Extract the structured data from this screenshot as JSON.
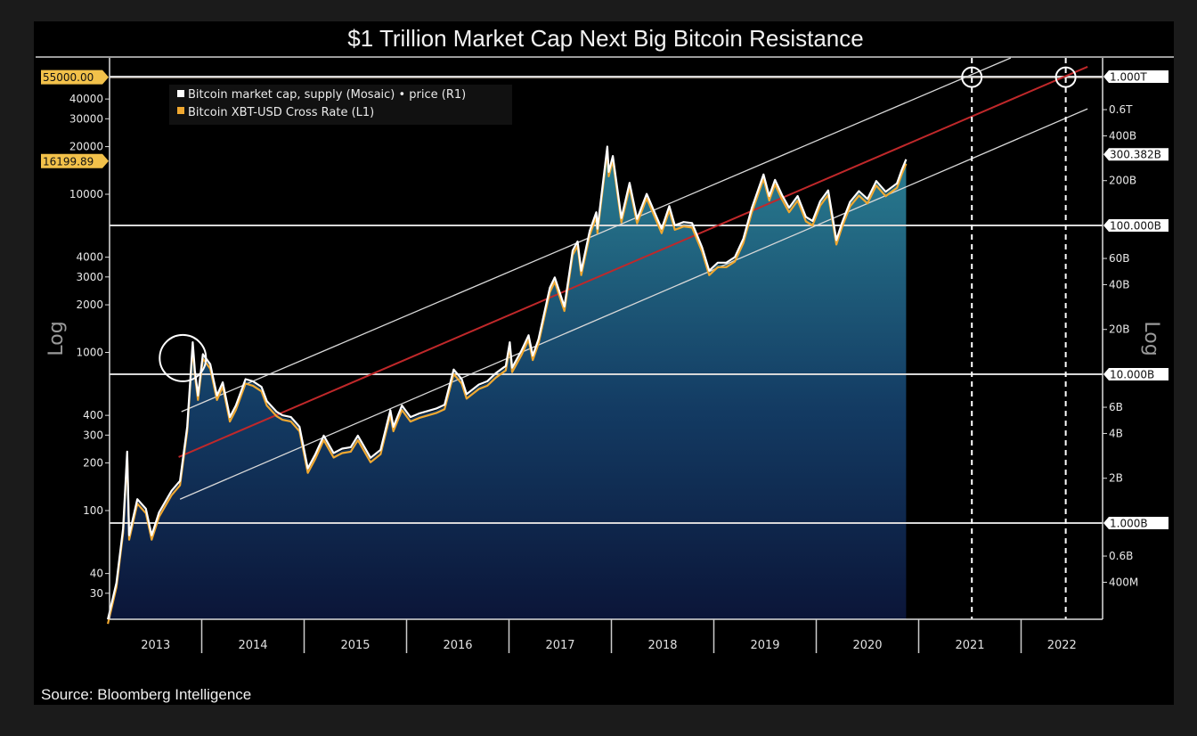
{
  "chart_data": {
    "type": "line",
    "title": "$1 Trillion Market Cap Next Big Bitcoin Resistance",
    "source": "Source: Bloomberg Intelligence",
    "x_range": [
      "2013-02-01",
      "2022-10-15"
    ],
    "x_tick_labels": [
      "2013",
      "2014",
      "2015",
      "2016",
      "2017",
      "2018",
      "2019",
      "2020",
      "2021",
      "2022"
    ],
    "left_axis": {
      "label": "Log",
      "scale": "log",
      "unit": "USD",
      "ticks": [
        {
          "v": 40000,
          "t": "40000"
        },
        {
          "v": 30000,
          "t": "30000"
        },
        {
          "v": 20000,
          "t": "20000"
        },
        {
          "v": 10000,
          "t": "10000"
        },
        {
          "v": 4000,
          "t": "4000"
        },
        {
          "v": 3000,
          "t": "3000"
        },
        {
          "v": 2000,
          "t": "2000"
        },
        {
          "v": 1000,
          "t": "1000"
        },
        {
          "v": 400,
          "t": "400"
        },
        {
          "v": 300,
          "t": "300"
        },
        {
          "v": 200,
          "t": "200"
        },
        {
          "v": 100,
          "t": "100"
        },
        {
          "v": 40,
          "t": "40"
        },
        {
          "v": 30,
          "t": "30"
        }
      ],
      "highlight_labels": [
        {
          "v": 55000,
          "t": "55000.00"
        },
        {
          "v": 16199.89,
          "t": "16199.89"
        }
      ]
    },
    "right_axis": {
      "label": "Log",
      "scale": "log",
      "unit": "USD billions",
      "ticks": [
        {
          "v": 600,
          "t": "0.6T"
        },
        {
          "v": 400,
          "t": "400B"
        },
        {
          "v": 200,
          "t": "200B"
        },
        {
          "v": 60,
          "t": "60B"
        },
        {
          "v": 40,
          "t": "40B"
        },
        {
          "v": 20,
          "t": "20B"
        },
        {
          "v": 6,
          "t": "6B"
        },
        {
          "v": 4,
          "t": "4B"
        },
        {
          "v": 2,
          "t": "2B"
        },
        {
          "v": 0.6,
          "t": "0.6B"
        },
        {
          "v": 0.4,
          "t": "400M"
        }
      ],
      "boxed_labels": [
        {
          "v": 1000,
          "t": "1.000T"
        },
        {
          "v": 300.382,
          "t": "300.382B"
        },
        {
          "v": 100,
          "t": "100.000B"
        },
        {
          "v": 10,
          "t": "10.000B"
        },
        {
          "v": 1,
          "t": "1.000B"
        }
      ]
    },
    "legend": {
      "placement": "top-left",
      "entries": [
        {
          "name": "Bitcoin market cap, supply (Mosaic) • price (R1)",
          "color": "#ffffff"
        },
        {
          "name": "Bitcoin XBT-USD Cross Rate (L1)",
          "color": "#f0a830"
        }
      ]
    },
    "series_columns": [
      "date",
      "price_usd_L1",
      "market_cap_usd_billions_R1"
    ],
    "series": [
      [
        "2013-02-01",
        20,
        0.22
      ],
      [
        "2013-03-01",
        34,
        0.37
      ],
      [
        "2013-03-25",
        75,
        0.83
      ],
      [
        "2013-04-09",
        230,
        2.54
      ],
      [
        "2013-04-16",
        68,
        0.75
      ],
      [
        "2013-05-15",
        115,
        1.28
      ],
      [
        "2013-06-15",
        100,
        1.13
      ],
      [
        "2013-07-05",
        68,
        0.77
      ],
      [
        "2013-08-01",
        95,
        1.08
      ],
      [
        "2013-09-15",
        130,
        1.51
      ],
      [
        "2013-10-15",
        150,
        1.76
      ],
      [
        "2013-11-10",
        330,
        3.91
      ],
      [
        "2013-11-30",
        1130,
        13.5
      ],
      [
        "2013-12-07",
        750,
        9.0
      ],
      [
        "2013-12-18",
        520,
        6.24
      ],
      [
        "2014-01-05",
        950,
        11.5
      ],
      [
        "2014-02-01",
        820,
        10.1
      ],
      [
        "2014-02-25",
        520,
        6.45
      ],
      [
        "2014-03-15",
        630,
        7.88
      ],
      [
        "2014-04-10",
        380,
        4.79
      ],
      [
        "2014-05-01",
        450,
        5.72
      ],
      [
        "2014-06-05",
        660,
        8.51
      ],
      [
        "2014-07-01",
        640,
        8.32
      ],
      [
        "2014-08-01",
        590,
        7.76
      ],
      [
        "2014-08-20",
        480,
        6.34
      ],
      [
        "2014-09-25",
        410,
        5.47
      ],
      [
        "2014-10-15",
        390,
        5.23
      ],
      [
        "2014-11-15",
        380,
        5.13
      ],
      [
        "2014-12-15",
        330,
        4.49
      ],
      [
        "2015-01-14",
        180,
        2.47
      ],
      [
        "2015-02-10",
        220,
        3.04
      ],
      [
        "2015-03-10",
        290,
        4.03
      ],
      [
        "2015-04-15",
        225,
        3.15
      ],
      [
        "2015-05-15",
        240,
        3.4
      ],
      [
        "2015-06-15",
        245,
        3.5
      ],
      [
        "2015-07-10",
        290,
        4.18
      ],
      [
        "2015-08-25",
        210,
        3.05
      ],
      [
        "2015-09-30",
        236,
        3.47
      ],
      [
        "2015-11-04",
        420,
        6.22
      ],
      [
        "2015-11-15",
        330,
        4.9
      ],
      [
        "2015-12-15",
        450,
        6.75
      ],
      [
        "2016-01-15",
        380,
        5.74
      ],
      [
        "2016-02-15",
        400,
        6.08
      ],
      [
        "2016-03-15",
        415,
        6.35
      ],
      [
        "2016-04-15",
        430,
        6.62
      ],
      [
        "2016-05-15",
        455,
        7.05
      ],
      [
        "2016-06-17",
        760,
        11.9
      ],
      [
        "2016-07-15",
        660,
        10.4
      ],
      [
        "2016-08-02",
        530,
        8.37
      ],
      [
        "2016-09-15",
        610,
        9.7
      ],
      [
        "2016-10-15",
        640,
        10.2
      ],
      [
        "2016-11-15",
        720,
        11.5
      ],
      [
        "2016-12-20",
        800,
        12.9
      ],
      [
        "2017-01-04",
        1130,
        18.2
      ],
      [
        "2017-01-12",
        780,
        12.6
      ],
      [
        "2017-02-15",
        1000,
        16.2
      ],
      [
        "2017-03-10",
        1250,
        20.3
      ],
      [
        "2017-03-25",
        930,
        15.1
      ],
      [
        "2017-04-15",
        1180,
        19.2
      ],
      [
        "2017-05-25",
        2500,
        40.9
      ],
      [
        "2017-06-12",
        2900,
        47.6
      ],
      [
        "2017-07-16",
        1900,
        31.3
      ],
      [
        "2017-08-15",
        4300,
        71.0
      ],
      [
        "2017-09-02",
        4900,
        81.1
      ],
      [
        "2017-09-15",
        3200,
        53.1
      ],
      [
        "2017-10-15",
        5700,
        94.7
      ],
      [
        "2017-11-08",
        7500,
        125
      ],
      [
        "2017-11-12",
        5900,
        98.4
      ],
      [
        "2017-12-17",
        19500,
        327
      ],
      [
        "2017-12-22",
        13500,
        226
      ],
      [
        "2018-01-06",
        17000,
        286
      ],
      [
        "2018-02-06",
        6900,
        116
      ],
      [
        "2018-03-05",
        11500,
        194
      ],
      [
        "2018-04-01",
        6800,
        115
      ],
      [
        "2018-05-05",
        9800,
        167
      ],
      [
        "2018-06-28",
        5900,
        101
      ],
      [
        "2018-07-25",
        8200,
        141
      ],
      [
        "2018-08-14",
        6200,
        107
      ],
      [
        "2018-09-15",
        6500,
        112
      ],
      [
        "2018-10-15",
        6400,
        111
      ],
      [
        "2018-11-20",
        4500,
        78.3
      ],
      [
        "2018-12-15",
        3200,
        55.8
      ],
      [
        "2019-01-15",
        3600,
        63.0
      ],
      [
        "2019-02-15",
        3600,
        63.2
      ],
      [
        "2019-03-15",
        3900,
        68.6
      ],
      [
        "2019-04-15",
        5100,
        90.0
      ],
      [
        "2019-05-15",
        8000,
        142
      ],
      [
        "2019-06-26",
        13000,
        231
      ],
      [
        "2019-07-16",
        9500,
        169
      ],
      [
        "2019-08-06",
        12000,
        214
      ],
      [
        "2019-09-01",
        9600,
        172
      ],
      [
        "2019-09-26",
        8000,
        144
      ],
      [
        "2019-10-26",
        9500,
        171
      ],
      [
        "2019-11-25",
        7000,
        126
      ],
      [
        "2019-12-18",
        6600,
        119
      ],
      [
        "2020-01-15",
        8800,
        160
      ],
      [
        "2020-02-13",
        10300,
        188
      ],
      [
        "2020-03-12",
        5000,
        91.4
      ],
      [
        "2020-04-01",
        6400,
        117
      ],
      [
        "2020-04-30",
        8700,
        160
      ],
      [
        "2020-06-01",
        10200,
        188
      ],
      [
        "2020-07-01",
        9100,
        168
      ],
      [
        "2020-08-02",
        11800,
        218
      ],
      [
        "2020-09-05",
        10100,
        187
      ],
      [
        "2020-10-15",
        11400,
        211
      ],
      [
        "2020-11-01",
        13800,
        256
      ],
      [
        "2020-11-17",
        16199.89,
        300.382
      ]
    ],
    "trend_lines": [
      {
        "kind": "upper channel",
        "color": "#d8d8d8",
        "from": [
          "2013-10-20",
          422
        ],
        "to": [
          "2021-11-25",
          72800
        ]
      },
      {
        "kind": "center",
        "color": "#c0282a",
        "from": [
          "2013-10-10",
          218
        ],
        "to": [
          "2022-08-25",
          64000
        ]
      },
      {
        "kind": "lower channel",
        "color": "#d8d8d8",
        "from": [
          "2013-10-15",
          118
        ],
        "to": [
          "2022-08-25",
          34700
        ]
      }
    ],
    "horizontal_lines": {
      "left_usd": [
        55000
      ],
      "right_billions": [
        1000,
        100,
        10,
        1
      ]
    },
    "vertical_dashed_lines": [
      "2021-07-08",
      "2022-06-08"
    ],
    "circle_annotations": [
      [
        "2013-10-25",
        920
      ],
      [
        "2021-07-08",
        55000
      ],
      [
        "2022-06-08",
        55000
      ]
    ],
    "colors": {
      "background": "#000000",
      "fill_top": "#2a7f92",
      "fill_bottom": "#0b1538",
      "price": "#f0a830",
      "market_cap": "#ffffff",
      "center_trend": "#c0282a"
    }
  }
}
